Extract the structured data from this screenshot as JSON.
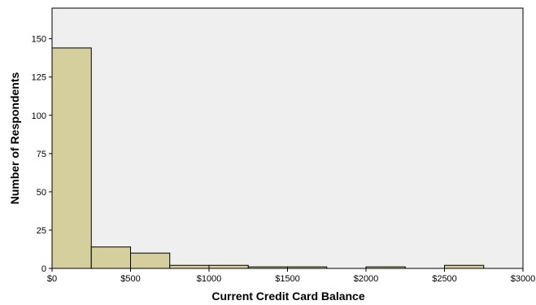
{
  "chart_data": {
    "type": "bar",
    "subtype": "histogram",
    "xlabel": "Current Credit Card Balance",
    "ylabel": "Number of Respondents",
    "xlim": [
      0,
      3000
    ],
    "ylim": [
      0,
      170
    ],
    "bin_width": 250,
    "x_ticks": [
      {
        "value": 0,
        "label": "$0"
      },
      {
        "value": 500,
        "label": "$500"
      },
      {
        "value": 1000,
        "label": "$1000"
      },
      {
        "value": 1500,
        "label": "$1500"
      },
      {
        "value": 2000,
        "label": "$2000"
      },
      {
        "value": 2500,
        "label": "$2500"
      },
      {
        "value": 3000,
        "label": "$3000"
      }
    ],
    "y_ticks": [
      {
        "value": 0,
        "label": "0"
      },
      {
        "value": 25,
        "label": "25"
      },
      {
        "value": 50,
        "label": "50"
      },
      {
        "value": 75,
        "label": "75"
      },
      {
        "value": 100,
        "label": "100"
      },
      {
        "value": 125,
        "label": "125"
      },
      {
        "value": 150,
        "label": "150"
      }
    ],
    "bins": [
      {
        "start": 0,
        "end": 250,
        "count": 144
      },
      {
        "start": 250,
        "end": 500,
        "count": 14
      },
      {
        "start": 500,
        "end": 750,
        "count": 10
      },
      {
        "start": 750,
        "end": 1000,
        "count": 2
      },
      {
        "start": 1000,
        "end": 1250,
        "count": 2
      },
      {
        "start": 1250,
        "end": 1500,
        "count": 1
      },
      {
        "start": 1500,
        "end": 1750,
        "count": 1
      },
      {
        "start": 2000,
        "end": 2250,
        "count": 1
      },
      {
        "start": 2500,
        "end": 2750,
        "count": 2
      }
    ],
    "grid": false,
    "legend": "none",
    "colors": {
      "bar_fill": "#d4cf9c",
      "bar_stroke": "#000000",
      "plot_background": "#efefef",
      "frame": "#000000"
    }
  }
}
